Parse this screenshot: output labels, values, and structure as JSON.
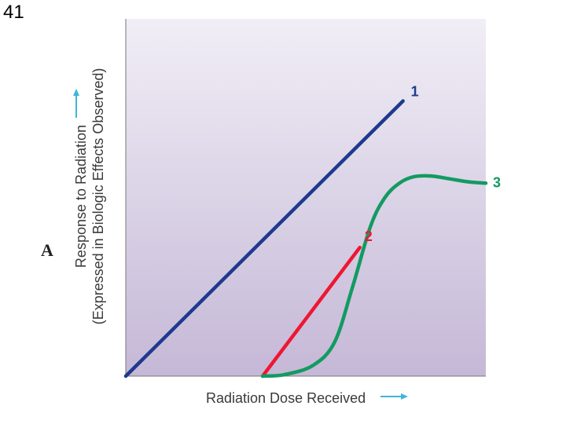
{
  "slide_number": "41",
  "panel_letter": "A",
  "chart_data": {
    "type": "line",
    "title": "",
    "xlabel": "Radiation Dose Received",
    "ylabel_line1": "Response to Radiation",
    "ylabel_line2": "(Expressed in Biologic Effects Observed)",
    "xlim": [
      0,
      100
    ],
    "ylim": [
      0,
      100
    ],
    "grid": false,
    "legend": "inline-labels",
    "background_gradient": [
      "#f1eef6",
      "#c5b8d7"
    ],
    "axis_arrow_color": "#3fb6d6",
    "series": [
      {
        "name": "1",
        "color": "#1e3a8e",
        "x": [
          0,
          77
        ],
        "y": [
          0,
          77
        ]
      },
      {
        "name": "2",
        "color": "#ee1732",
        "x": [
          38,
          65
        ],
        "y": [
          0,
          36
        ]
      },
      {
        "name": "3",
        "color": "#139a62",
        "x": [
          38,
          44,
          52,
          58,
          63,
          68,
          72,
          76,
          80,
          85,
          90,
          95,
          100
        ],
        "y": [
          0,
          0.4,
          3,
          9.5,
          25,
          42,
          50,
          54,
          55.8,
          56,
          55.2,
          54.4,
          54
        ]
      }
    ]
  }
}
